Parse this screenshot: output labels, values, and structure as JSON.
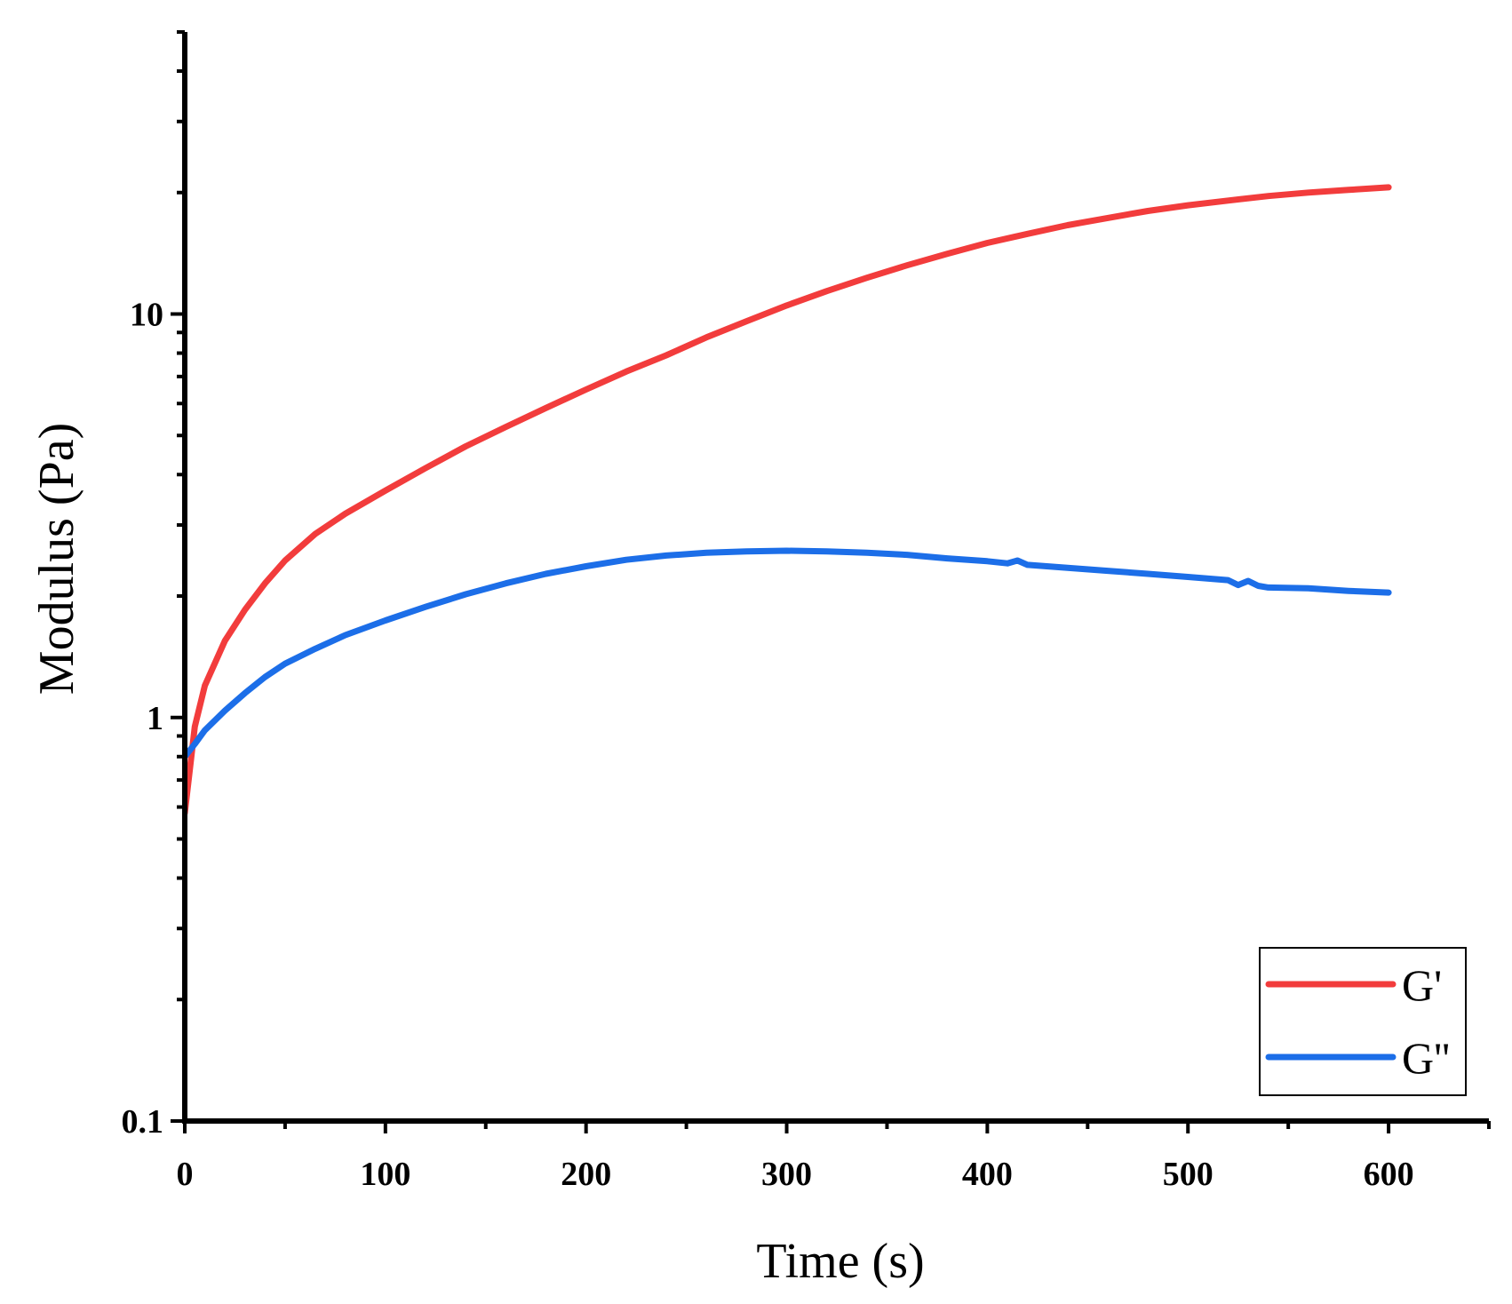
{
  "chart_data": {
    "type": "line",
    "title": "",
    "xlabel": "Time (s)",
    "ylabel": "Modulus (Pa)",
    "xlim": [
      0,
      650
    ],
    "ylim": [
      0.1,
      50
    ],
    "yscale": "log",
    "x_ticks": [
      0,
      100,
      200,
      300,
      400,
      500,
      600
    ],
    "x_tick_labels": [
      "0",
      "100",
      "200",
      "300",
      "400",
      "500",
      "600"
    ],
    "y_ticks": [
      0.1,
      1,
      10
    ],
    "y_tick_labels": [
      "0.1",
      "1",
      "10"
    ],
    "grid": false,
    "legend_position": "bottom-right",
    "series": [
      {
        "name": "G'",
        "color": "#f23c3c",
        "x": [
          0,
          5,
          10,
          20,
          30,
          40,
          50,
          65,
          80,
          100,
          120,
          140,
          160,
          180,
          200,
          220,
          240,
          260,
          280,
          300,
          320,
          340,
          360,
          380,
          400,
          420,
          440,
          460,
          480,
          500,
          520,
          540,
          560,
          580,
          600
        ],
        "y": [
          0.58,
          0.95,
          1.2,
          1.55,
          1.85,
          2.15,
          2.45,
          2.85,
          3.2,
          3.65,
          4.15,
          4.7,
          5.25,
          5.85,
          6.5,
          7.2,
          7.9,
          8.75,
          9.6,
          10.5,
          11.4,
          12.3,
          13.2,
          14.1,
          15.0,
          15.8,
          16.6,
          17.3,
          18.0,
          18.6,
          19.1,
          19.6,
          20.0,
          20.3,
          20.6
        ]
      },
      {
        "name": "G''",
        "color": "#1c6ee8",
        "x": [
          0,
          5,
          10,
          20,
          30,
          40,
          50,
          65,
          80,
          100,
          120,
          140,
          160,
          180,
          200,
          220,
          240,
          260,
          280,
          300,
          320,
          340,
          360,
          380,
          400,
          410,
          415,
          420,
          440,
          460,
          480,
          500,
          520,
          525,
          530,
          535,
          540,
          560,
          580,
          600
        ],
        "y": [
          0.8,
          0.86,
          0.93,
          1.04,
          1.15,
          1.26,
          1.36,
          1.48,
          1.6,
          1.74,
          1.88,
          2.02,
          2.15,
          2.27,
          2.37,
          2.46,
          2.52,
          2.56,
          2.58,
          2.59,
          2.58,
          2.56,
          2.53,
          2.48,
          2.44,
          2.41,
          2.45,
          2.39,
          2.35,
          2.31,
          2.27,
          2.23,
          2.19,
          2.13,
          2.18,
          2.12,
          2.1,
          2.09,
          2.06,
          2.04
        ]
      }
    ]
  }
}
